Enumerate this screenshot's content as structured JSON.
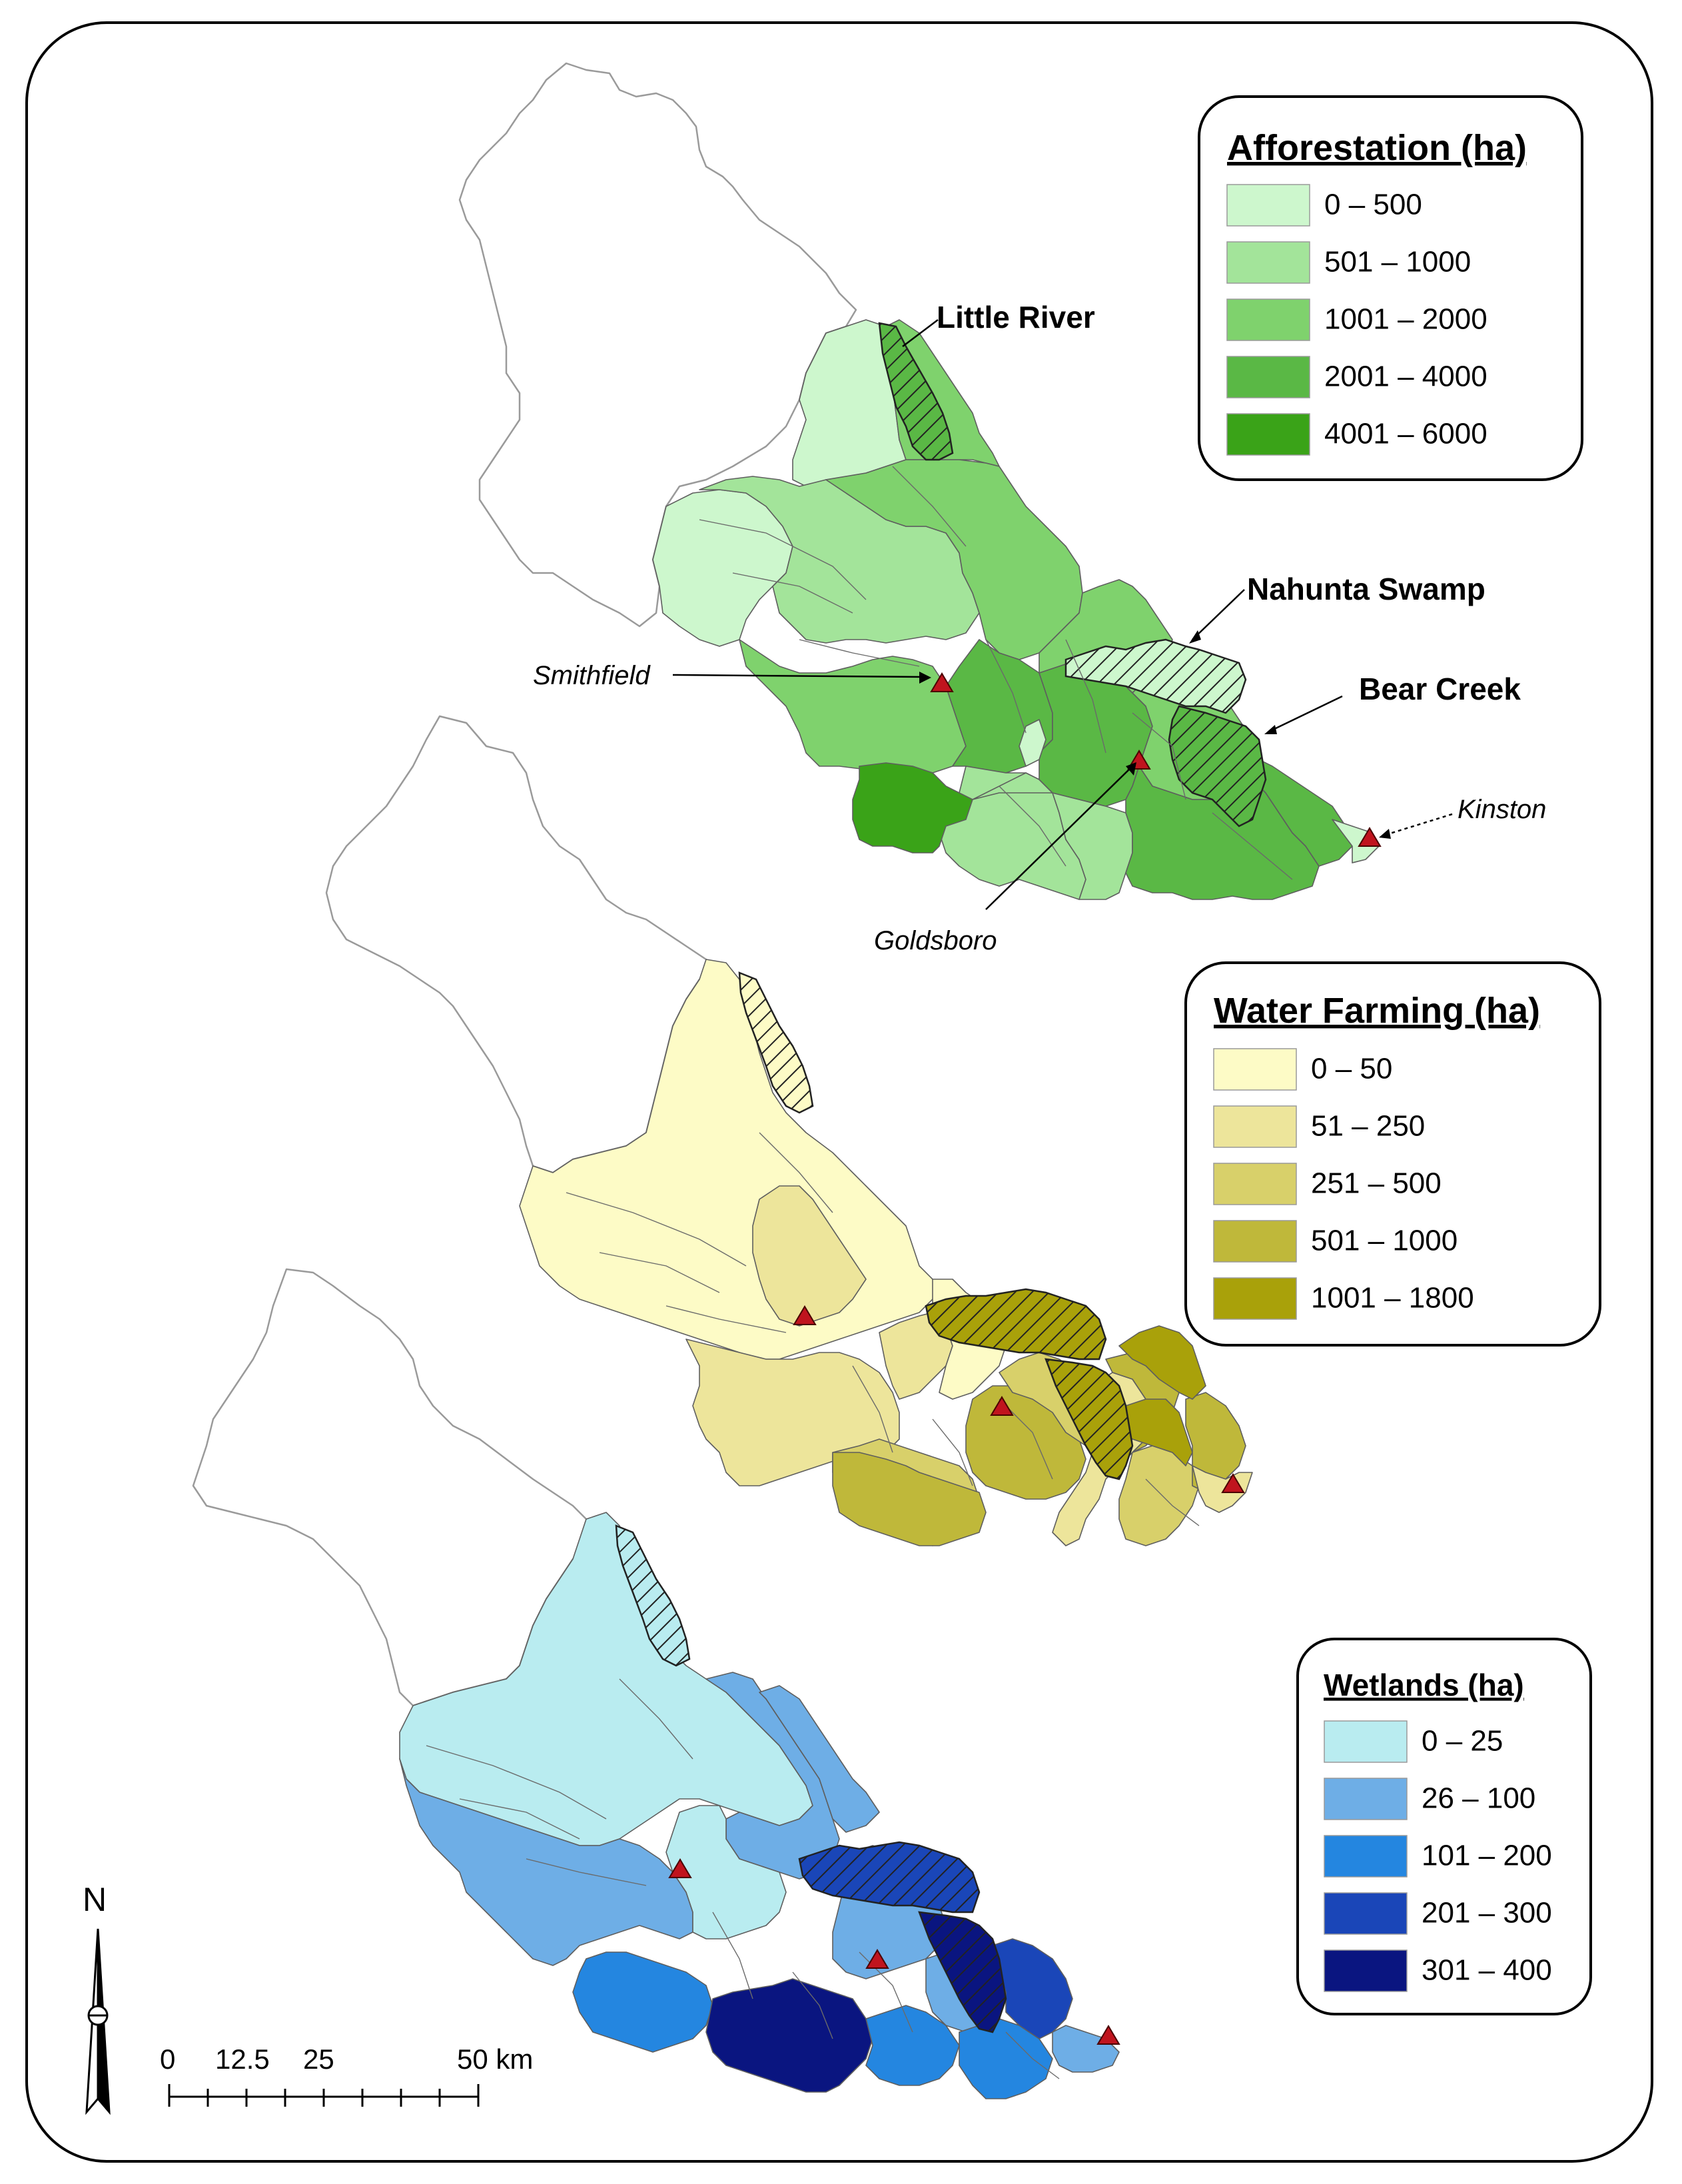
{
  "legends": {
    "afforestation": {
      "title": "Afforestation (ha)",
      "classes": [
        {
          "label": "0 – 500",
          "color": "#cdf7cd"
        },
        {
          "label": "501 – 1000",
          "color": "#a3e49a"
        },
        {
          "label": "1001 – 2000",
          "color": "#7fd26d"
        },
        {
          "label": "2001 – 4000",
          "color": "#5ab845"
        },
        {
          "label": "4001 – 6000",
          "color": "#3aa318"
        }
      ]
    },
    "water_farming": {
      "title": "Water Farming (ha)",
      "classes": [
        {
          "label": "0 – 50",
          "color": "#fdfbc6"
        },
        {
          "label": "51 – 250",
          "color": "#ede59b"
        },
        {
          "label": "251 – 500",
          "color": "#d8d06a"
        },
        {
          "label": "501 – 1000",
          "color": "#bfb83a"
        },
        {
          "label": "1001 – 1800",
          "color": "#a9a10a"
        }
      ]
    },
    "wetlands": {
      "title": "Wetlands (ha)",
      "classes": [
        {
          "label": "0 – 25",
          "color": "#b9ecf0"
        },
        {
          "label": "26 – 100",
          "color": "#6eaee6"
        },
        {
          "label": "101 – 200",
          "color": "#2486e0"
        },
        {
          "label": "201 – 300",
          "color": "#1a46b8"
        },
        {
          "label": "301 – 400",
          "color": "#0a1580"
        }
      ]
    }
  },
  "labels": {
    "little_river": "Little River",
    "nahunta_swamp": "Nahunta Swamp",
    "bear_creek": "Bear Creek",
    "smithfield": "Smithfield",
    "goldsboro": "Goldsboro",
    "kinston": "Kinston"
  },
  "north_arrow": {
    "label": "N"
  },
  "scale_bar": {
    "ticks": [
      "0",
      "12.5",
      "25",
      "50 km"
    ]
  },
  "gauge_color": "#c0141e",
  "hatch_color": "#222222"
}
